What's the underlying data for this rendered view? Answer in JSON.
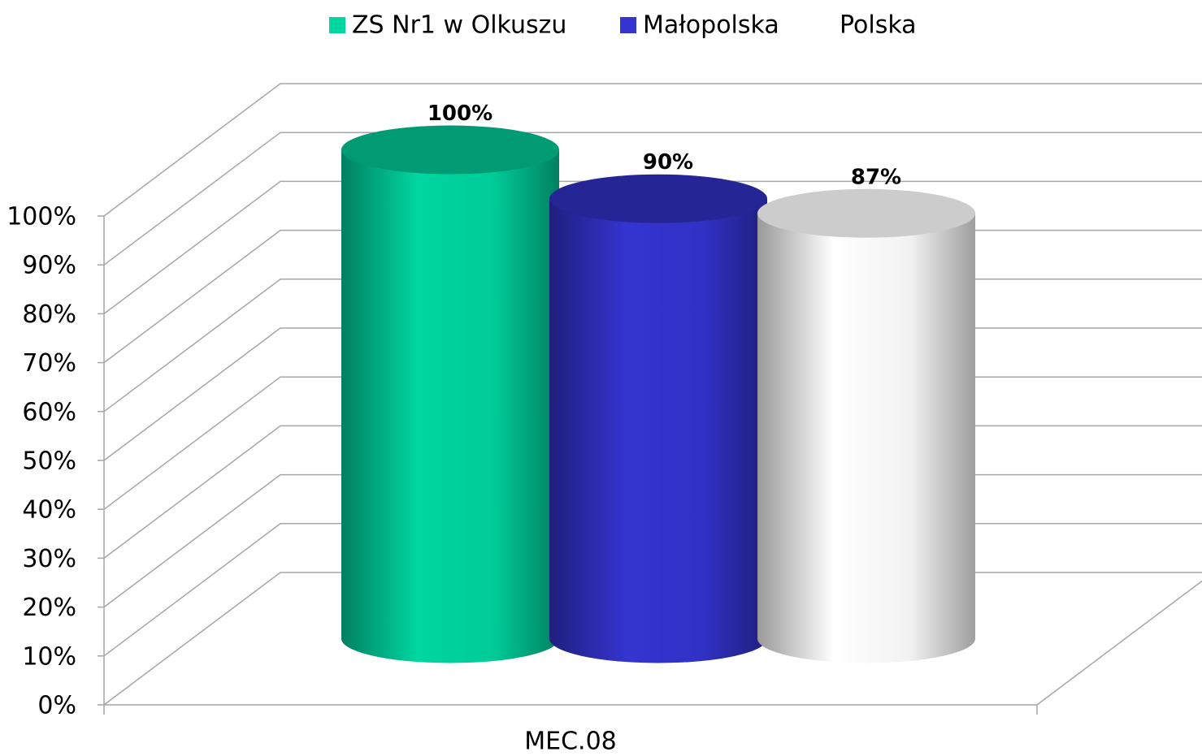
{
  "chart_data": {
    "type": "bar3d",
    "categories": [
      "MEC.08"
    ],
    "series": [
      {
        "name": "ZS Nr1 w Olkuszu",
        "color": "#00d6a0",
        "values": [
          100
        ],
        "value_labels": [
          "100%"
        ]
      },
      {
        "name": "Małopolska",
        "color": "#3434d0",
        "values": [
          90
        ],
        "value_labels": [
          "90%"
        ]
      },
      {
        "name": "Polska",
        "color": "#ffffff",
        "values": [
          87
        ],
        "value_labels": [
          "87%"
        ]
      }
    ],
    "ylim": [
      0,
      100
    ],
    "yticks": [
      {
        "value": 0,
        "label": "0%"
      },
      {
        "value": 10,
        "label": "10%"
      },
      {
        "value": 20,
        "label": "20%"
      },
      {
        "value": 30,
        "label": "30%"
      },
      {
        "value": 40,
        "label": "40%"
      },
      {
        "value": 50,
        "label": "50%"
      },
      {
        "value": 60,
        "label": "60%"
      },
      {
        "value": 70,
        "label": "70%"
      },
      {
        "value": 80,
        "label": "80%"
      },
      {
        "value": 90,
        "label": "90%"
      },
      {
        "value": 100,
        "label": "100%"
      }
    ],
    "grid": true,
    "legend": "top"
  }
}
